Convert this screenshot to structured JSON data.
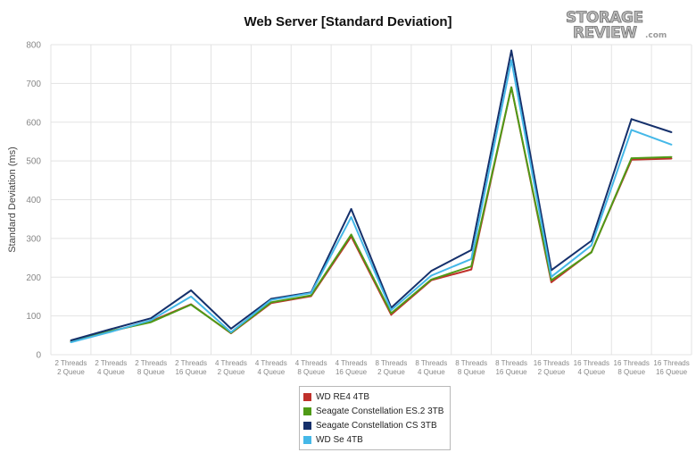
{
  "logo": {
    "line1": "STORAGE",
    "line2": "REVIEW",
    "suffix": ".com"
  },
  "colors": {
    "wd_re4": "#c0312b",
    "seagate_es2": "#4f9a16",
    "seagate_cs": "#15306b",
    "wd_se": "#45b8e8",
    "grid": "#e3e3e3",
    "axis_text": "#888888"
  },
  "chart_data": {
    "type": "line",
    "title": "Web Server [Standard Deviation]",
    "xlabel": "",
    "ylabel": "Standard Deviation (ms)",
    "ylim": [
      0,
      800
    ],
    "yticks": [
      0,
      100,
      200,
      300,
      400,
      500,
      600,
      700,
      800
    ],
    "grid": true,
    "legend_position": "bottom-center",
    "categories": [
      [
        "2 Threads",
        "2 Queue"
      ],
      [
        "2 Threads",
        "4 Queue"
      ],
      [
        "2 Threads",
        "8 Queue"
      ],
      [
        "2 Threads",
        "16 Queue"
      ],
      [
        "4 Threads",
        "2 Queue"
      ],
      [
        "4 Threads",
        "4 Queue"
      ],
      [
        "4 Threads",
        "8 Queue"
      ],
      [
        "4 Threads",
        "16 Queue"
      ],
      [
        "8 Threads",
        "2 Queue"
      ],
      [
        "8 Threads",
        "4 Queue"
      ],
      [
        "8 Threads",
        "8 Queue"
      ],
      [
        "8 Threads",
        "16 Queue"
      ],
      [
        "16 Threads",
        "2 Queue"
      ],
      [
        "16 Threads",
        "4 Queue"
      ],
      [
        "16 Threads",
        "8 Queue"
      ],
      [
        "16 Threads",
        "16 Queue"
      ]
    ],
    "series": [
      {
        "name": "WD RE4 4TB",
        "color_key": "wd_re4",
        "values": [
          34,
          60,
          86,
          130,
          55,
          133,
          151,
          305,
          103,
          192,
          220,
          690,
          187,
          265,
          503,
          506
        ]
      },
      {
        "name": "Seagate Constellation ES.2 3TB",
        "color_key": "seagate_es2",
        "values": [
          33,
          61,
          84,
          129,
          56,
          135,
          153,
          310,
          107,
          194,
          228,
          690,
          192,
          264,
          507,
          510
        ]
      },
      {
        "name": "Seagate Constellation CS 3TB",
        "color_key": "seagate_cs",
        "values": [
          37,
          66,
          94,
          166,
          67,
          144,
          161,
          376,
          121,
          216,
          270,
          785,
          218,
          294,
          608,
          574
        ]
      },
      {
        "name": "WD Se 4TB",
        "color_key": "wd_se",
        "values": [
          32,
          59,
          89,
          150,
          58,
          141,
          159,
          355,
          115,
          204,
          247,
          760,
          201,
          282,
          580,
          542
        ]
      }
    ]
  }
}
